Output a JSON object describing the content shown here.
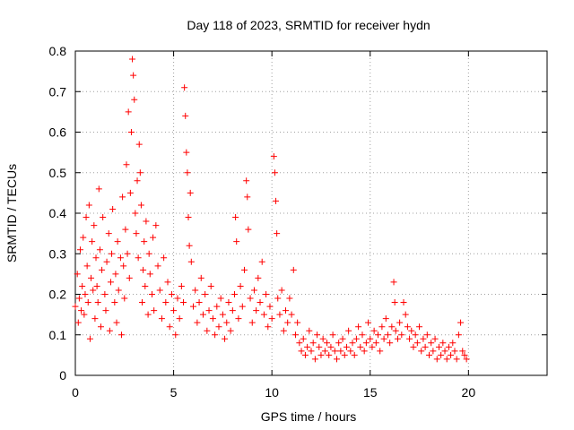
{
  "chart_data": {
    "type": "scatter",
    "title": "Day 118 of 2023, SRMTID for receiver hydn",
    "xlabel": "GPS time / hours",
    "ylabel": "SRMTID / TECUs",
    "xlim": [
      0,
      24
    ],
    "ylim": [
      0,
      0.8
    ],
    "xticks": [
      0,
      5,
      10,
      15,
      20
    ],
    "yticks": [
      0,
      0.1,
      0.2,
      0.3,
      0.4,
      0.5,
      0.6,
      0.7,
      0.8
    ],
    "xtick_labels": [
      "0",
      "5",
      "10",
      "15",
      "20"
    ],
    "ytick_labels": [
      "0",
      "0.1",
      "0.2",
      "0.3",
      "0.4",
      "0.5",
      "0.6",
      "0.7",
      "0.8"
    ],
    "grid": true,
    "marker": "+",
    "color": "#ff0000",
    "series": [
      {
        "name": "SRMTID",
        "points": [
          [
            0.0,
            0.17
          ],
          [
            0.1,
            0.25
          ],
          [
            0.15,
            0.13
          ],
          [
            0.2,
            0.19
          ],
          [
            0.25,
            0.31
          ],
          [
            0.3,
            0.16
          ],
          [
            0.35,
            0.22
          ],
          [
            0.4,
            0.34
          ],
          [
            0.45,
            0.15
          ],
          [
            0.5,
            0.2
          ],
          [
            0.55,
            0.39
          ],
          [
            0.6,
            0.27
          ],
          [
            0.65,
            0.18
          ],
          [
            0.7,
            0.42
          ],
          [
            0.75,
            0.09
          ],
          [
            0.8,
            0.24
          ],
          [
            0.85,
            0.33
          ],
          [
            0.9,
            0.21
          ],
          [
            0.95,
            0.37
          ],
          [
            1.0,
            0.14
          ],
          [
            1.05,
            0.29
          ],
          [
            1.1,
            0.22
          ],
          [
            1.15,
            0.18
          ],
          [
            1.2,
            0.46
          ],
          [
            1.25,
            0.31
          ],
          [
            1.3,
            0.12
          ],
          [
            1.35,
            0.26
          ],
          [
            1.4,
            0.39
          ],
          [
            1.5,
            0.2
          ],
          [
            1.55,
            0.16
          ],
          [
            1.6,
            0.28
          ],
          [
            1.7,
            0.35
          ],
          [
            1.75,
            0.11
          ],
          [
            1.8,
            0.23
          ],
          [
            1.85,
            0.3
          ],
          [
            1.9,
            0.41
          ],
          [
            2.0,
            0.18
          ],
          [
            2.05,
            0.25
          ],
          [
            2.1,
            0.13
          ],
          [
            2.15,
            0.33
          ],
          [
            2.2,
            0.21
          ],
          [
            2.3,
            0.29
          ],
          [
            2.35,
            0.1
          ],
          [
            2.4,
            0.44
          ],
          [
            2.45,
            0.27
          ],
          [
            2.5,
            0.19
          ],
          [
            2.55,
            0.36
          ],
          [
            2.6,
            0.52
          ],
          [
            2.65,
            0.3
          ],
          [
            2.7,
            0.65
          ],
          [
            2.75,
            0.24
          ],
          [
            2.8,
            0.45
          ],
          [
            2.85,
            0.6
          ],
          [
            2.9,
            0.78
          ],
          [
            2.95,
            0.74
          ],
          [
            3.0,
            0.68
          ],
          [
            3.05,
            0.4
          ],
          [
            3.1,
            0.35
          ],
          [
            3.15,
            0.48
          ],
          [
            3.2,
            0.29
          ],
          [
            3.25,
            0.57
          ],
          [
            3.3,
            0.5
          ],
          [
            3.35,
            0.42
          ],
          [
            3.4,
            0.18
          ],
          [
            3.45,
            0.26
          ],
          [
            3.5,
            0.33
          ],
          [
            3.55,
            0.22
          ],
          [
            3.6,
            0.38
          ],
          [
            3.7,
            0.15
          ],
          [
            3.75,
            0.3
          ],
          [
            3.8,
            0.25
          ],
          [
            3.9,
            0.2
          ],
          [
            3.95,
            0.34
          ],
          [
            4.0,
            0.16
          ],
          [
            4.1,
            0.37
          ],
          [
            4.2,
            0.27
          ],
          [
            4.3,
            0.21
          ],
          [
            4.4,
            0.14
          ],
          [
            4.5,
            0.29
          ],
          [
            4.6,
            0.18
          ],
          [
            4.7,
            0.23
          ],
          [
            4.8,
            0.12
          ],
          [
            4.9,
            0.2
          ],
          [
            5.0,
            0.16
          ],
          [
            5.1,
            0.1
          ],
          [
            5.2,
            0.19
          ],
          [
            5.3,
            0.14
          ],
          [
            5.4,
            0.22
          ],
          [
            5.5,
            0.18
          ],
          [
            5.55,
            0.71
          ],
          [
            5.6,
            0.64
          ],
          [
            5.65,
            0.55
          ],
          [
            5.7,
            0.5
          ],
          [
            5.75,
            0.39
          ],
          [
            5.8,
            0.32
          ],
          [
            5.85,
            0.45
          ],
          [
            5.9,
            0.28
          ],
          [
            6.0,
            0.17
          ],
          [
            6.1,
            0.21
          ],
          [
            6.2,
            0.13
          ],
          [
            6.3,
            0.18
          ],
          [
            6.4,
            0.24
          ],
          [
            6.5,
            0.15
          ],
          [
            6.6,
            0.2
          ],
          [
            6.7,
            0.11
          ],
          [
            6.8,
            0.16
          ],
          [
            6.9,
            0.22
          ],
          [
            7.0,
            0.14
          ],
          [
            7.1,
            0.1
          ],
          [
            7.2,
            0.17
          ],
          [
            7.3,
            0.12
          ],
          [
            7.4,
            0.19
          ],
          [
            7.5,
            0.15
          ],
          [
            7.6,
            0.09
          ],
          [
            7.7,
            0.13
          ],
          [
            7.8,
            0.18
          ],
          [
            7.9,
            0.11
          ],
          [
            8.0,
            0.16
          ],
          [
            8.1,
            0.2
          ],
          [
            8.15,
            0.39
          ],
          [
            8.2,
            0.33
          ],
          [
            8.3,
            0.14
          ],
          [
            8.4,
            0.22
          ],
          [
            8.5,
            0.17
          ],
          [
            8.6,
            0.26
          ],
          [
            8.7,
            0.48
          ],
          [
            8.75,
            0.44
          ],
          [
            8.8,
            0.36
          ],
          [
            8.9,
            0.19
          ],
          [
            9.0,
            0.13
          ],
          [
            9.1,
            0.21
          ],
          [
            9.2,
            0.16
          ],
          [
            9.3,
            0.24
          ],
          [
            9.4,
            0.18
          ],
          [
            9.5,
            0.28
          ],
          [
            9.6,
            0.15
          ],
          [
            9.7,
            0.2
          ],
          [
            9.8,
            0.12
          ],
          [
            9.9,
            0.17
          ],
          [
            10.0,
            0.14
          ],
          [
            10.1,
            0.54
          ],
          [
            10.15,
            0.5
          ],
          [
            10.2,
            0.43
          ],
          [
            10.25,
            0.35
          ],
          [
            10.3,
            0.19
          ],
          [
            10.4,
            0.15
          ],
          [
            10.5,
            0.21
          ],
          [
            10.6,
            0.11
          ],
          [
            10.7,
            0.16
          ],
          [
            10.8,
            0.13
          ],
          [
            10.9,
            0.19
          ],
          [
            11.0,
            0.15
          ],
          [
            11.1,
            0.26
          ],
          [
            11.2,
            0.1
          ],
          [
            11.3,
            0.13
          ],
          [
            11.4,
            0.08
          ],
          [
            11.5,
            0.06
          ],
          [
            11.6,
            0.09
          ],
          [
            11.7,
            0.05
          ],
          [
            11.8,
            0.07
          ],
          [
            11.9,
            0.11
          ],
          [
            12.0,
            0.06
          ],
          [
            12.1,
            0.08
          ],
          [
            12.2,
            0.04
          ],
          [
            12.3,
            0.1
          ],
          [
            12.4,
            0.07
          ],
          [
            12.5,
            0.05
          ],
          [
            12.6,
            0.09
          ],
          [
            12.7,
            0.06
          ],
          [
            12.8,
            0.08
          ],
          [
            12.9,
            0.05
          ],
          [
            13.0,
            0.07
          ],
          [
            13.1,
            0.1
          ],
          [
            13.2,
            0.06
          ],
          [
            13.3,
            0.04
          ],
          [
            13.4,
            0.08
          ],
          [
            13.5,
            0.06
          ],
          [
            13.6,
            0.09
          ],
          [
            13.7,
            0.05
          ],
          [
            13.8,
            0.07
          ],
          [
            13.9,
            0.11
          ],
          [
            14.0,
            0.06
          ],
          [
            14.1,
            0.08
          ],
          [
            14.2,
            0.05
          ],
          [
            14.3,
            0.09
          ],
          [
            14.4,
            0.12
          ],
          [
            14.5,
            0.07
          ],
          [
            14.6,
            0.1
          ],
          [
            14.7,
            0.06
          ],
          [
            14.8,
            0.08
          ],
          [
            14.9,
            0.13
          ],
          [
            15.0,
            0.09
          ],
          [
            15.1,
            0.07
          ],
          [
            15.2,
            0.11
          ],
          [
            15.3,
            0.08
          ],
          [
            15.4,
            0.1
          ],
          [
            15.5,
            0.06
          ],
          [
            15.6,
            0.12
          ],
          [
            15.7,
            0.09
          ],
          [
            15.8,
            0.14
          ],
          [
            15.9,
            0.1
          ],
          [
            16.0,
            0.08
          ],
          [
            16.1,
            0.12
          ],
          [
            16.2,
            0.23
          ],
          [
            16.25,
            0.18
          ],
          [
            16.3,
            0.11
          ],
          [
            16.4,
            0.09
          ],
          [
            16.5,
            0.13
          ],
          [
            16.6,
            0.1
          ],
          [
            16.7,
            0.18
          ],
          [
            16.8,
            0.15
          ],
          [
            16.9,
            0.12
          ],
          [
            17.0,
            0.09
          ],
          [
            17.1,
            0.11
          ],
          [
            17.2,
            0.07
          ],
          [
            17.3,
            0.1
          ],
          [
            17.4,
            0.08
          ],
          [
            17.5,
            0.12
          ],
          [
            17.6,
            0.06
          ],
          [
            17.7,
            0.09
          ],
          [
            17.8,
            0.07
          ],
          [
            17.9,
            0.1
          ],
          [
            18.0,
            0.05
          ],
          [
            18.1,
            0.08
          ],
          [
            18.2,
            0.06
          ],
          [
            18.3,
            0.09
          ],
          [
            18.4,
            0.04
          ],
          [
            18.5,
            0.07
          ],
          [
            18.6,
            0.05
          ],
          [
            18.7,
            0.08
          ],
          [
            18.8,
            0.06
          ],
          [
            18.9,
            0.04
          ],
          [
            19.0,
            0.07
          ],
          [
            19.1,
            0.05
          ],
          [
            19.2,
            0.08
          ],
          [
            19.3,
            0.06
          ],
          [
            19.4,
            0.04
          ],
          [
            19.5,
            0.1
          ],
          [
            19.6,
            0.13
          ],
          [
            19.7,
            0.06
          ],
          [
            19.8,
            0.05
          ],
          [
            19.9,
            0.04
          ]
        ]
      }
    ]
  }
}
